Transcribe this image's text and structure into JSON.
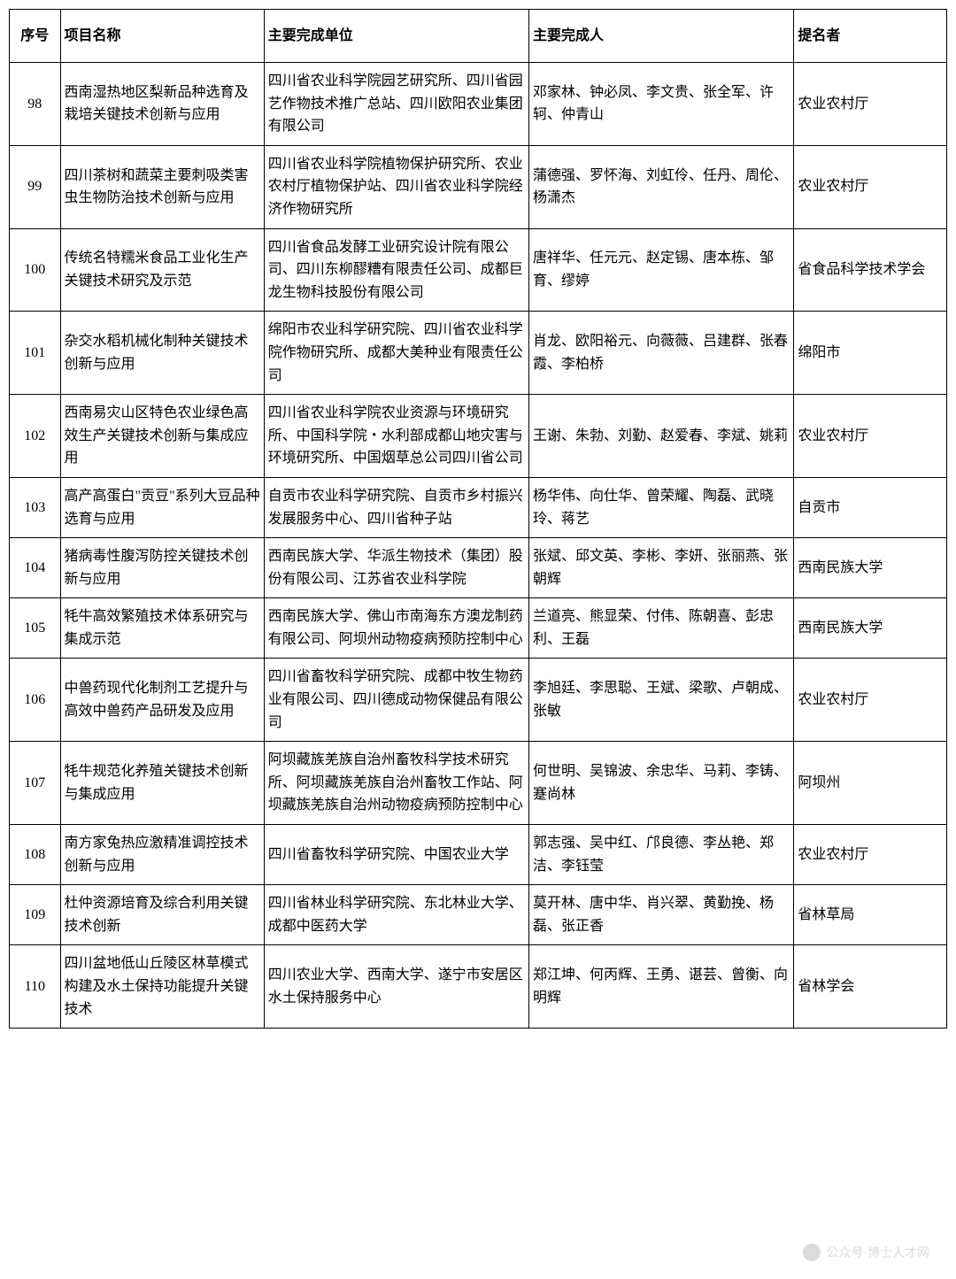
{
  "table": {
    "columns": [
      "序号",
      "项目名称",
      "主要完成单位",
      "主要完成人",
      "提名者"
    ],
    "col_widths": [
      "50px",
      "200px",
      "260px",
      "260px",
      "150px"
    ],
    "border_color": "#000000",
    "font_family": "SimSun",
    "font_size": 16,
    "background_color": "#ffffff",
    "rows": [
      {
        "seq": "98",
        "name": "西南湿热地区梨新品种选育及栽培关键技术创新与应用",
        "unit": "四川省农业科学院园艺研究所、四川省园艺作物技术推广总站、四川欧阳农业集团有限公司",
        "person": "邓家林、钟必凤、李文贵、张全军、许轲、仲青山",
        "nominator": "农业农村厅"
      },
      {
        "seq": "99",
        "name": "四川茶树和蔬菜主要刺吸类害虫生物防治技术创新与应用",
        "unit": "四川省农业科学院植物保护研究所、农业农村厅植物保护站、四川省农业科学院经济作物研究所",
        "person": "蒲德强、罗怀海、刘虹伶、任丹、周伦、杨潇杰",
        "nominator": "农业农村厅"
      },
      {
        "seq": "100",
        "name": "传统名特糯米食品工业化生产关键技术研究及示范",
        "unit": "四川省食品发酵工业研究设计院有限公司、四川东柳醪糟有限责任公司、成都巨龙生物科技股份有限公司",
        "person": "唐祥华、任元元、赵定锡、唐本栋、邹育、缪婷",
        "nominator": "省食品科学技术学会"
      },
      {
        "seq": "101",
        "name": "杂交水稻机械化制种关键技术创新与应用",
        "unit": "绵阳市农业科学研究院、四川省农业科学院作物研究所、成都大美种业有限责任公司",
        "person": "肖龙、欧阳裕元、向薇薇、吕建群、张春霞、李柏桥",
        "nominator": "绵阳市"
      },
      {
        "seq": "102",
        "name": "西南易灾山区特色农业绿色高效生产关键技术创新与集成应用",
        "unit": "四川省农业科学院农业资源与环境研究所、中国科学院・水利部成都山地灾害与环境研究所、中国烟草总公司四川省公司",
        "person": "王谢、朱勃、刘勤、赵爱春、李斌、姚莉",
        "nominator": "农业农村厅"
      },
      {
        "seq": "103",
        "name": "高产高蛋白\"贡豆\"系列大豆品种选育与应用",
        "unit": "自贡市农业科学研究院、自贡市乡村振兴发展服务中心、四川省种子站",
        "person": "杨华伟、向仕华、曾荣耀、陶磊、武晓玲、蒋艺",
        "nominator": "自贡市"
      },
      {
        "seq": "104",
        "name": "猪病毒性腹泻防控关键技术创新与应用",
        "unit": "西南民族大学、华派生物技术（集团）股份有限公司、江苏省农业科学院",
        "person": "张斌、邱文英、李彬、李妍、张丽燕、张朝辉",
        "nominator": "西南民族大学"
      },
      {
        "seq": "105",
        "name": "牦牛高效繁殖技术体系研究与集成示范",
        "unit": "西南民族大学、佛山市南海东方澳龙制药有限公司、阿坝州动物疫病预防控制中心",
        "person": "兰道亮、熊显荣、付伟、陈朝喜、彭忠利、王磊",
        "nominator": "西南民族大学"
      },
      {
        "seq": "106",
        "name": "中兽药现代化制剂工艺提升与高效中兽药产品研发及应用",
        "unit": "四川省畜牧科学研究院、成都中牧生物药业有限公司、四川德成动物保健品有限公司",
        "person": "李旭廷、李思聪、王斌、梁歌、卢朝成、张敏",
        "nominator": "农业农村厅"
      },
      {
        "seq": "107",
        "name": "牦牛规范化养殖关键技术创新与集成应用",
        "unit": "阿坝藏族羌族自治州畜牧科学技术研究所、阿坝藏族羌族自治州畜牧工作站、阿坝藏族羌族自治州动物疫病预防控制中心",
        "person": "何世明、吴锦波、余忠华、马莉、李铸、蹇尚林",
        "nominator": "阿坝州"
      },
      {
        "seq": "108",
        "name": "南方家兔热应激精准调控技术创新与应用",
        "unit": "四川省畜牧科学研究院、中国农业大学",
        "person": "郭志强、吴中红、邝良德、李丛艳、郑洁、李钰莹",
        "nominator": "农业农村厅"
      },
      {
        "seq": "109",
        "name": "杜仲资源培育及综合利用关键技术创新",
        "unit": "四川省林业科学研究院、东北林业大学、成都中医药大学",
        "person": "莫开林、唐中华、肖兴翠、黄勤挽、杨磊、张正香",
        "nominator": "省林草局"
      },
      {
        "seq": "110",
        "name": "四川盆地低山丘陵区林草模式构建及水土保持功能提升关键技术",
        "unit": "四川农业大学、西南大学、遂宁市安居区水土保持服务中心",
        "person": "郑江坤、何丙辉、王勇、谌芸、曾衡、向明辉",
        "nominator": "省林学会"
      }
    ]
  },
  "watermark": {
    "text": "公众号·博士人才网"
  }
}
